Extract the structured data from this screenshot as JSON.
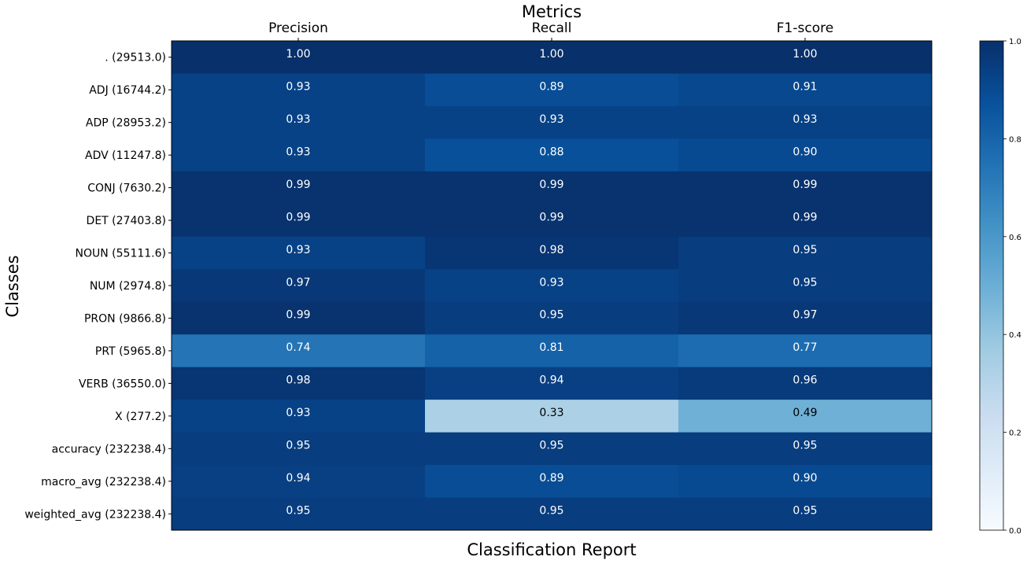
{
  "chart_data": {
    "type": "heatmap",
    "title": "Metrics",
    "xlabel": "Classification Report",
    "ylabel": "Classes",
    "columns": [
      "Precision",
      "Recall",
      "F1-score"
    ],
    "rows": [
      ". (29513.0)",
      "ADJ (16744.2)",
      "ADP (28953.2)",
      "ADV (11247.8)",
      "CONJ (7630.2)",
      "DET (27403.8)",
      "NOUN (55111.6)",
      "NUM (2974.8)",
      "PRON (9866.8)",
      "PRT (5965.8)",
      "VERB (36550.0)",
      "X (277.2)",
      "accuracy (232238.4)",
      "macro_avg (232238.4)",
      "weighted_avg (232238.4)"
    ],
    "values": [
      [
        1.0,
        1.0,
        1.0
      ],
      [
        0.93,
        0.89,
        0.91
      ],
      [
        0.93,
        0.93,
        0.93
      ],
      [
        0.93,
        0.88,
        0.9
      ],
      [
        0.99,
        0.99,
        0.99
      ],
      [
        0.99,
        0.99,
        0.99
      ],
      [
        0.93,
        0.98,
        0.95
      ],
      [
        0.97,
        0.93,
        0.95
      ],
      [
        0.99,
        0.95,
        0.97
      ],
      [
        0.74,
        0.81,
        0.77
      ],
      [
        0.98,
        0.94,
        0.96
      ],
      [
        0.93,
        0.33,
        0.49
      ],
      [
        0.95,
        0.95,
        0.95
      ],
      [
        0.94,
        0.89,
        0.9
      ],
      [
        0.95,
        0.95,
        0.95
      ]
    ],
    "colorbar": {
      "range": [
        0.0,
        1.0
      ],
      "ticks": [
        "0.0",
        "0.2",
        "0.4",
        "0.6",
        "0.8",
        "1.0"
      ],
      "colormap": [
        "#f7fbff",
        "#deebf7",
        "#c6dbef",
        "#9ecae1",
        "#6baed6",
        "#4292c6",
        "#2171b5",
        "#08519c",
        "#08306b"
      ]
    }
  }
}
